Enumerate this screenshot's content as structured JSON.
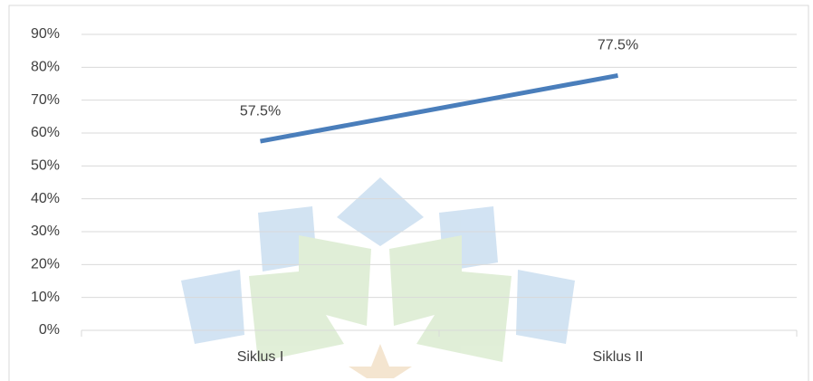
{
  "chart_data": {
    "type": "line",
    "categories": [
      "Siklus I",
      "Siklus II"
    ],
    "values": [
      57.5,
      77.5
    ],
    "value_labels": [
      "57.5%",
      "77.5%"
    ],
    "color": "#4a7ebb",
    "ylim": [
      0,
      90
    ],
    "yticks": [
      {
        "value": 0,
        "label": "0%"
      },
      {
        "value": 10,
        "label": "10%"
      },
      {
        "value": 20,
        "label": "20%"
      },
      {
        "value": 30,
        "label": "30%"
      },
      {
        "value": 40,
        "label": "40%"
      },
      {
        "value": 50,
        "label": "50%"
      },
      {
        "value": 60,
        "label": "60%"
      },
      {
        "value": 70,
        "label": "70%"
      },
      {
        "value": 80,
        "label": "80%"
      },
      {
        "value": 90,
        "label": "90%"
      }
    ],
    "grid": true
  }
}
